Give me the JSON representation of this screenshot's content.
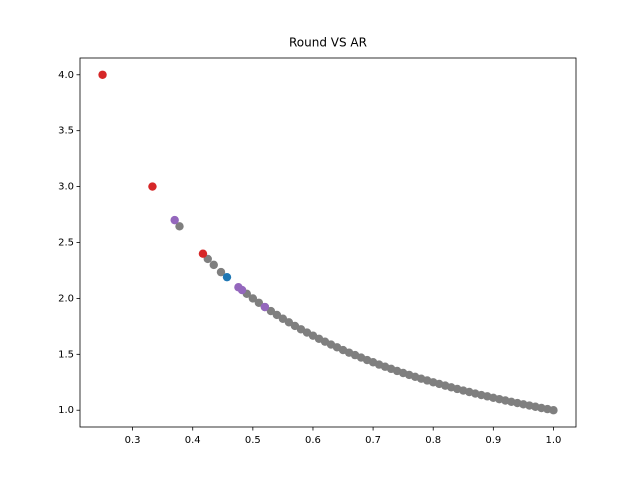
{
  "chart_data": {
    "type": "scatter",
    "title": "Round VS AR",
    "xlim": [
      0.2125,
      1.0375
    ],
    "ylim": [
      0.85,
      4.15
    ],
    "xticks": [
      0.3,
      0.4,
      0.5,
      0.6,
      0.7,
      0.8,
      0.9,
      {
        "value": 1.0,
        "label": "1.0"
      }
    ],
    "yticks": [
      {
        "value": 1.0,
        "label": "1.0"
      },
      1.5,
      {
        "value": 2.0,
        "label": "2.0"
      },
      2.5,
      {
        "value": 3.0,
        "label": "3.0"
      },
      3.5,
      {
        "value": 4.0,
        "label": "4.0"
      }
    ],
    "series": [
      {
        "color": "#7f7f7f",
        "x": [
          0.378,
          0.425,
          0.435,
          0.447,
          0.49,
          0.5,
          0.51,
          0.52,
          0.53,
          0.54,
          0.55,
          0.56,
          0.57,
          0.58,
          0.59,
          0.6,
          0.61,
          0.62,
          0.63,
          0.64,
          0.65,
          0.66,
          0.67,
          0.68,
          0.69,
          0.7,
          0.71,
          0.72,
          0.73,
          0.74,
          0.75,
          0.76,
          0.77,
          0.78,
          0.79,
          0.8,
          0.81,
          0.82,
          0.83,
          0.84,
          0.85,
          0.86,
          0.87,
          0.88,
          0.89,
          0.9,
          0.91,
          0.92,
          0.93,
          0.94,
          0.95,
          0.96,
          0.97,
          0.98,
          0.99,
          1.0
        ],
        "y": [
          2.645,
          2.353,
          2.3,
          2.235,
          2.041,
          2.0,
          1.961,
          1.923,
          1.887,
          1.852,
          1.818,
          1.786,
          1.754,
          1.724,
          1.695,
          1.667,
          1.639,
          1.613,
          1.587,
          1.563,
          1.538,
          1.515,
          1.493,
          1.471,
          1.449,
          1.429,
          1.408,
          1.389,
          1.37,
          1.351,
          1.333,
          1.316,
          1.299,
          1.282,
          1.266,
          1.25,
          1.235,
          1.22,
          1.205,
          1.19,
          1.176,
          1.163,
          1.149,
          1.136,
          1.124,
          1.111,
          1.099,
          1.087,
          1.075,
          1.064,
          1.053,
          1.042,
          1.031,
          1.02,
          1.01,
          1.0
        ]
      },
      {
        "color": "#9467bd",
        "x": [
          0.37,
          0.476,
          0.482,
          0.52
        ],
        "y": [
          2.7,
          2.1,
          2.075,
          1.923
        ]
      },
      {
        "color": "#1f77b4",
        "x": [
          0.457
        ],
        "y": [
          2.19
        ]
      },
      {
        "color": "#d62728",
        "x": [
          0.25,
          0.333,
          0.417
        ],
        "y": [
          4.0,
          3.0,
          2.4
        ]
      }
    ]
  }
}
